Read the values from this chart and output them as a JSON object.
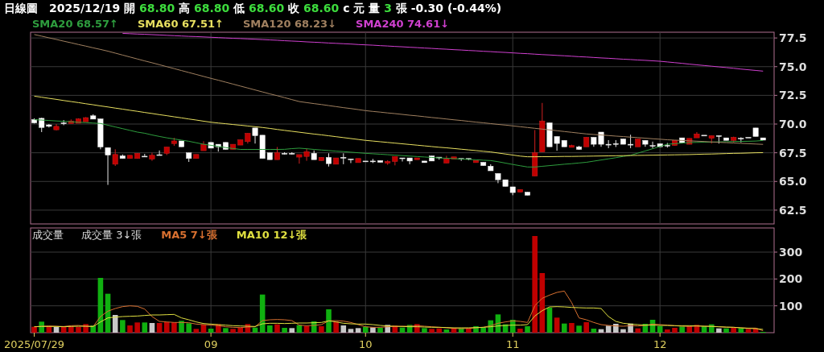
{
  "chart_data": [
    {
      "type": "candlestick",
      "title": "日線圖",
      "subtitle": "2025/12/19 開 68.80 高 68.80 低 68.60 收 68.60 c 元 量 3 張 -0.30 (-0.44%)",
      "categories": [
        "2025/07/29",
        null,
        null,
        null,
        null,
        null,
        null,
        null,
        null,
        null,
        null,
        null,
        null,
        null,
        null,
        null,
        null,
        null,
        null,
        null,
        null,
        null,
        null,
        null,
        "09",
        null,
        null,
        null,
        null,
        null,
        null,
        null,
        null,
        null,
        null,
        null,
        null,
        null,
        null,
        null,
        null,
        null,
        null,
        null,
        null,
        "10",
        null,
        null,
        null,
        null,
        null,
        null,
        null,
        null,
        null,
        null,
        null,
        null,
        null,
        null,
        null,
        null,
        null,
        null,
        null,
        "11",
        null,
        null,
        null,
        null,
        null,
        null,
        null,
        null,
        null,
        null,
        null,
        null,
        null,
        null,
        null,
        null,
        null,
        null,
        null,
        "12",
        null,
        null,
        null,
        null,
        null,
        null,
        null,
        null,
        null,
        null,
        null,
        null,
        null,
        null
      ],
      "ohlc": [
        [
          70.4,
          70.5,
          70.05,
          70.1
        ],
        [
          70.5,
          70.55,
          69.3,
          69.7
        ],
        [
          69.93,
          70.0,
          69.7,
          69.8
        ],
        [
          69.5,
          70.0,
          69.45,
          69.8
        ],
        [
          70.1,
          70.35,
          69.9,
          70.1
        ],
        [
          70.05,
          70.4,
          70.05,
          70.27
        ],
        [
          70.07,
          70.5,
          70.07,
          70.45
        ],
        [
          70.2,
          70.6,
          70.2,
          70.56
        ],
        [
          70.72,
          70.85,
          70.43,
          70.43
        ],
        [
          70.45,
          70.45,
          67.8,
          68.0
        ],
        [
          67.95,
          67.95,
          64.7,
          67.3
        ],
        [
          66.5,
          67.8,
          66.35,
          67.35
        ],
        [
          67.23,
          67.35,
          67.0,
          67.0
        ],
        [
          67.0,
          67.28,
          67.0,
          67.28
        ],
        [
          67.0,
          67.45,
          67.0,
          67.45
        ],
        [
          67.2,
          67.4,
          67.2,
          67.2
        ],
        [
          66.95,
          67.5,
          66.8,
          67.28
        ],
        [
          67.33,
          67.7,
          67.33,
          67.33
        ],
        [
          67.45,
          68.0,
          67.3,
          68.0
        ],
        [
          68.3,
          68.8,
          68.1,
          68.53
        ],
        [
          68.53,
          68.53,
          68.02,
          68.02
        ],
        [
          67.5,
          67.5,
          66.7,
          67.0
        ],
        [
          67.0,
          67.35,
          67.0,
          67.35
        ],
        [
          67.68,
          68.5,
          67.68,
          68.24
        ],
        [
          68.4,
          68.4,
          67.9,
          67.9
        ],
        [
          68.24,
          68.24,
          67.6,
          68.02
        ],
        [
          68.4,
          68.4,
          67.79,
          67.79
        ],
        [
          67.79,
          68.24,
          67.79,
          68.24
        ],
        [
          68.17,
          68.63,
          68.17,
          68.63
        ],
        [
          68.47,
          69.2,
          68.3,
          69.2
        ],
        [
          69.66,
          69.66,
          68.3,
          68.99
        ],
        [
          69.03,
          69.03,
          67.0,
          67.0
        ],
        [
          67.5,
          67.5,
          66.9,
          66.9
        ],
        [
          66.9,
          68.0,
          66.9,
          67.5
        ],
        [
          67.45,
          67.55,
          67.35,
          67.45
        ],
        [
          67.45,
          67.55,
          67.35,
          67.45
        ],
        [
          67.12,
          67.34,
          66.55,
          67.34
        ],
        [
          67.18,
          67.85,
          66.8,
          67.6
        ],
        [
          67.45,
          67.7,
          66.9,
          66.9
        ],
        [
          66.82,
          67.1,
          66.82,
          67.1
        ],
        [
          67.1,
          67.45,
          66.3,
          66.55
        ],
        [
          66.5,
          67.05,
          66.5,
          67.05
        ],
        [
          67.1,
          67.45,
          66.5,
          67.1
        ],
        [
          66.96,
          66.96,
          66.6,
          66.96
        ],
        [
          66.64,
          67.0,
          66.64,
          67.0
        ],
        [
          66.78,
          66.78,
          66.78,
          66.78
        ],
        [
          66.78,
          66.96,
          66.6,
          66.78
        ],
        [
          66.82,
          66.82,
          66.67,
          66.67
        ],
        [
          66.6,
          66.85,
          66.45,
          66.74
        ],
        [
          66.74,
          67.18,
          66.4,
          67.18
        ],
        [
          67.05,
          67.05,
          66.74,
          67.05
        ],
        [
          67.05,
          67.05,
          66.5,
          66.78
        ],
        [
          66.9,
          67.05,
          66.9,
          67.05
        ],
        [
          66.78,
          66.78,
          66.64,
          66.64
        ],
        [
          67.23,
          67.23,
          66.78,
          66.78
        ],
        [
          67.12,
          67.12,
          66.9,
          67.12
        ],
        [
          66.6,
          67.23,
          66.6,
          66.96
        ],
        [
          66.96,
          67.14,
          66.96,
          67.14
        ],
        [
          67.0,
          67.0,
          66.8,
          67.0
        ],
        [
          67.0,
          67.0,
          66.85,
          67.0
        ],
        [
          66.64,
          66.82,
          66.64,
          66.82
        ],
        [
          66.67,
          66.67,
          66.38,
          66.38
        ],
        [
          66.33,
          66.5,
          65.93,
          65.93
        ],
        [
          65.7,
          65.7,
          64.85,
          65.15
        ],
        [
          65.15,
          65.15,
          64.57,
          64.57
        ],
        [
          64.53,
          64.53,
          63.8,
          64.03
        ],
        [
          64.07,
          64.3,
          64.07,
          64.3
        ],
        [
          64.07,
          64.07,
          63.8,
          63.8
        ],
        [
          65.47,
          69.48,
          65.47,
          67.5
        ],
        [
          67.57,
          71.84,
          67.57,
          70.27
        ],
        [
          70.11,
          70.11,
          68.02,
          68.02
        ],
        [
          68.92,
          68.92,
          67.68,
          68.31
        ],
        [
          68.58,
          68.58,
          68.02,
          68.02
        ],
        [
          67.97,
          68.2,
          67.97,
          68.13
        ],
        [
          68.02,
          68.1,
          67.75,
          67.79
        ],
        [
          68.02,
          68.85,
          68.02,
          68.85
        ],
        [
          68.85,
          68.85,
          68.02,
          68.24
        ],
        [
          69.3,
          69.3,
          68.02,
          68.24
        ],
        [
          68.24,
          68.6,
          67.9,
          68.24
        ],
        [
          68.3,
          68.6,
          68.0,
          68.3
        ],
        [
          68.7,
          68.7,
          68.24,
          68.24
        ],
        [
          68.24,
          69.07,
          67.9,
          68.24
        ],
        [
          68.02,
          68.7,
          68.02,
          68.7
        ],
        [
          68.58,
          68.58,
          68.02,
          68.24
        ],
        [
          68.13,
          68.47,
          67.9,
          68.13
        ],
        [
          68.29,
          68.29,
          68.02,
          68.02
        ],
        [
          68.15,
          68.35,
          67.95,
          68.15
        ],
        [
          68.13,
          68.58,
          68.13,
          68.58
        ],
        [
          68.8,
          68.8,
          68.36,
          68.36
        ],
        [
          68.24,
          68.75,
          68.24,
          68.75
        ],
        [
          68.8,
          69.3,
          68.8,
          69.14
        ],
        [
          69.03,
          69.03,
          69.03,
          69.03
        ],
        [
          68.76,
          68.99,
          68.3,
          68.99
        ],
        [
          68.99,
          68.99,
          68.3,
          68.99
        ],
        [
          68.8,
          68.8,
          68.58,
          68.58
        ],
        [
          68.58,
          68.9,
          68.4,
          68.85
        ],
        [
          68.76,
          68.85,
          68.4,
          68.76
        ],
        [
          68.85,
          68.85,
          68.85,
          68.85
        ],
        [
          69.66,
          69.66,
          68.92,
          68.92
        ],
        [
          68.8,
          68.8,
          68.6,
          68.6
        ]
      ],
      "series": [
        {
          "name": "SMA20 68.57↑",
          "type": "line",
          "color": "#2e9e3e",
          "values": [
            70.38,
            70.35,
            70.31,
            70.27,
            70.24,
            70.2,
            70.16,
            70.13,
            70.09,
            70.05,
            69.9,
            69.75,
            69.6,
            69.45,
            69.3,
            69.2,
            69.05,
            68.92,
            68.8,
            68.7,
            68.6,
            68.5,
            68.37,
            68.24,
            68.15,
            68.05,
            67.95,
            67.87,
            67.79,
            67.79,
            67.79,
            67.79,
            67.79,
            67.79,
            67.8,
            67.86,
            67.9,
            67.85,
            67.79,
            67.74,
            67.69,
            67.64,
            67.6,
            67.55,
            67.5,
            67.45,
            67.41,
            67.37,
            67.33,
            67.29,
            67.25,
            67.21,
            67.17,
            67.13,
            67.09,
            67.05,
            67.02,
            66.99,
            66.95,
            66.92,
            66.89,
            66.85,
            66.82,
            66.72,
            66.6,
            66.48,
            66.37,
            66.26,
            66.26,
            66.32,
            66.38,
            66.44,
            66.5,
            66.55,
            66.61,
            66.67,
            66.77,
            66.87,
            66.97,
            67.07,
            67.18,
            67.28,
            67.47,
            67.66,
            67.85,
            68.05,
            68.24,
            68.29,
            68.34,
            68.39,
            68.4,
            68.42,
            68.43,
            68.45,
            68.46,
            68.48,
            68.49,
            68.5,
            68.52,
            68.57
          ]
        },
        {
          "name": "SMA60 67.51↑",
          "type": "line",
          "color": "#e8e060",
          "values": [
            72.43,
            72.34,
            72.24,
            72.15,
            72.05,
            71.96,
            71.87,
            71.77,
            71.68,
            71.58,
            71.49,
            71.39,
            71.3,
            71.2,
            71.11,
            71.01,
            70.92,
            70.82,
            70.73,
            70.63,
            70.54,
            70.44,
            70.35,
            70.25,
            70.16,
            70.09,
            70.03,
            69.96,
            69.9,
            69.83,
            69.77,
            69.7,
            69.62,
            69.53,
            69.45,
            69.37,
            69.29,
            69.21,
            69.13,
            69.06,
            68.98,
            68.9,
            68.82,
            68.74,
            68.66,
            68.58,
            68.52,
            68.46,
            68.4,
            68.34,
            68.28,
            68.22,
            68.16,
            68.1,
            68.04,
            67.98,
            67.93,
            67.87,
            67.81,
            67.75,
            67.69,
            67.63,
            67.57,
            67.48,
            67.39,
            67.3,
            67.21,
            67.15,
            67.15,
            67.16,
            67.16,
            67.17,
            67.18,
            67.18,
            67.19,
            67.2,
            67.21,
            67.22,
            67.23,
            67.24,
            67.25,
            67.26,
            67.27,
            67.28,
            67.29,
            67.3,
            67.31,
            67.32,
            67.33,
            67.34,
            67.36,
            67.38,
            67.39,
            67.41,
            67.43,
            67.45,
            67.46,
            67.48,
            67.5,
            67.51
          ]
        },
        {
          "name": "SMA120 68.23↓",
          "type": "line",
          "color": "#a08060",
          "values": [
            77.8,
            77.66,
            77.51,
            77.37,
            77.22,
            77.08,
            76.93,
            76.79,
            76.64,
            76.5,
            76.35,
            76.18,
            76.01,
            75.84,
            75.67,
            75.5,
            75.34,
            75.17,
            75.0,
            74.83,
            74.66,
            74.49,
            74.32,
            74.15,
            73.98,
            73.82,
            73.65,
            73.48,
            73.31,
            73.14,
            72.97,
            72.8,
            72.63,
            72.47,
            72.3,
            72.13,
            71.96,
            71.87,
            71.78,
            71.7,
            71.61,
            71.52,
            71.43,
            71.35,
            71.26,
            71.17,
            71.1,
            71.04,
            70.97,
            70.91,
            70.84,
            70.77,
            70.71,
            70.64,
            70.57,
            70.51,
            70.44,
            70.37,
            70.31,
            70.24,
            70.17,
            70.11,
            70.04,
            69.97,
            69.91,
            69.84,
            69.77,
            69.7,
            69.63,
            69.56,
            69.49,
            69.42,
            69.35,
            69.28,
            69.21,
            69.14,
            69.09,
            69.05,
            69.0,
            68.95,
            68.91,
            68.86,
            68.82,
            68.77,
            68.72,
            68.68,
            68.63,
            68.6,
            68.57,
            68.54,
            68.51,
            68.48,
            68.44,
            68.41,
            68.38,
            68.35,
            68.32,
            68.29,
            68.26,
            68.23
          ]
        },
        {
          "name": "SMA240 74.61↓",
          "type": "line",
          "color": "#d040d0",
          "values": [
            null,
            null,
            null,
            null,
            null,
            null,
            null,
            null,
            null,
            null,
            null,
            null,
            77.9,
            77.87,
            77.84,
            77.82,
            77.79,
            77.76,
            77.73,
            77.7,
            77.67,
            77.64,
            77.62,
            77.59,
            77.56,
            77.53,
            77.5,
            77.47,
            77.45,
            77.42,
            77.39,
            77.36,
            77.33,
            77.3,
            77.26,
            77.23,
            77.2,
            77.16,
            77.13,
            77.1,
            77.06,
            77.03,
            77.0,
            76.97,
            76.93,
            76.9,
            76.87,
            76.83,
            76.8,
            76.76,
            76.73,
            76.69,
            76.66,
            76.62,
            76.59,
            76.55,
            76.52,
            76.48,
            76.45,
            76.41,
            76.38,
            76.34,
            76.31,
            76.27,
            76.24,
            76.2,
            76.16,
            76.13,
            76.09,
            76.05,
            76.02,
            75.98,
            75.95,
            75.91,
            75.87,
            75.84,
            75.8,
            75.76,
            75.73,
            75.69,
            75.65,
            75.62,
            75.58,
            75.55,
            75.51,
            75.47,
            75.41,
            75.35,
            75.29,
            75.22,
            75.16,
            75.1,
            75.04,
            74.98,
            74.92,
            74.86,
            74.79,
            74.73,
            74.67,
            74.61
          ]
        }
      ],
      "ylim": [
        61.3,
        78.0
      ],
      "yticks": [
        {
          "value": 62.5,
          "label": "62.5"
        },
        {
          "value": 65,
          "label": "65.0"
        },
        {
          "value": 67.5,
          "label": "67.5"
        },
        {
          "value": 70,
          "label": "70.0"
        },
        {
          "value": 72.5,
          "label": "72.5"
        },
        {
          "value": 75,
          "label": "75.0"
        },
        {
          "value": 77.5,
          "label": "77.5"
        }
      ],
      "grid": true,
      "legend": "top left",
      "tick_labels": "y"
    },
    {
      "type": "bar",
      "title": "成交量",
      "categories": [
        "2025/07/29",
        null,
        null,
        null,
        null,
        null,
        null,
        null,
        null,
        null,
        null,
        null,
        null,
        null,
        null,
        null,
        null,
        null,
        null,
        null,
        null,
        null,
        null,
        null,
        "09",
        null,
        null,
        null,
        null,
        null,
        null,
        null,
        null,
        null,
        null,
        null,
        null,
        null,
        null,
        null,
        null,
        null,
        null,
        null,
        null,
        "10",
        null,
        null,
        null,
        null,
        null,
        null,
        null,
        null,
        null,
        null,
        null,
        null,
        null,
        null,
        null,
        null,
        null,
        null,
        null,
        "11",
        null,
        null,
        null,
        null,
        null,
        null,
        null,
        null,
        null,
        null,
        null,
        null,
        null,
        null,
        null,
        null,
        null,
        null,
        null,
        "12",
        null,
        null,
        null,
        null,
        null,
        null,
        null,
        null,
        null,
        null,
        null,
        null,
        null,
        null
      ],
      "series": [
        {
          "name": "成交量 3↓張",
          "values": [
            22,
            41,
            24,
            21,
            22,
            23,
            22,
            32,
            27,
            204,
            145,
            66,
            47,
            27,
            38,
            38,
            36,
            36,
            39,
            38,
            44,
            35,
            14,
            30,
            15,
            31,
            17,
            14,
            18,
            32,
            19,
            142,
            27,
            31,
            18,
            17,
            28,
            24,
            42,
            24,
            87,
            41,
            27,
            14,
            17,
            22,
            20,
            18,
            29,
            26,
            19,
            29,
            32,
            17,
            14,
            16,
            12,
            18,
            16,
            15,
            24,
            19,
            46,
            68,
            31,
            48,
            15,
            24,
            360,
            222,
            93,
            56,
            34,
            36,
            26,
            39,
            15,
            13,
            26,
            33,
            13,
            34,
            16,
            33,
            48,
            24,
            12,
            18,
            23,
            24,
            29,
            24,
            31,
            16,
            16,
            18,
            17,
            14,
            16,
            3
          ],
          "colors": [
            "#c00000",
            "#10b010",
            "#c00000",
            "#c8c8c8",
            "#c00000",
            "#c00000",
            "#c00000",
            "#c00000",
            "#10b010",
            "#10b010",
            "#10b010",
            "#c8c8c8",
            "#10b010",
            "#c00000",
            "#c00000",
            "#10b010",
            "#c8c8c8",
            "#c00000",
            "#c00000",
            "#c00000",
            "#10b010",
            "#10b010",
            "#c00000",
            "#c00000",
            "#10b010",
            "#c00000",
            "#10b010",
            "#c00000",
            "#c00000",
            "#c00000",
            "#10b010",
            "#10b010",
            "#10b010",
            "#c00000",
            "#10b010",
            "#c8c8c8",
            "#10b010",
            "#c00000",
            "#10b010",
            "#c00000",
            "#10b010",
            "#c00000",
            "#c8c8c8",
            "#c8c8c8",
            "#c8c8c8",
            "#10b010",
            "#c8c8c8",
            "#10b010",
            "#c8c8c8",
            "#c00000",
            "#10b010",
            "#10b010",
            "#c00000",
            "#10b010",
            "#c00000",
            "#c00000",
            "#10b010",
            "#c00000",
            "#10b010",
            "#c00000",
            "#10b010",
            "#10b010",
            "#10b010",
            "#10b010",
            "#10b010",
            "#10b010",
            "#c00000",
            "#10b010",
            "#c00000",
            "#c00000",
            "#10b010",
            "#c00000",
            "#10b010",
            "#c00000",
            "#10b010",
            "#c00000",
            "#10b010",
            "#c8c8c8",
            "#c8c8c8",
            "#c8c8c8",
            "#c8c8c8",
            "#c8c8c8",
            "#c00000",
            "#10b010",
            "#10b010",
            "#10b010",
            "#c00000",
            "#c00000",
            "#10b010",
            "#c00000",
            "#c00000",
            "#10b010",
            "#10b010",
            "#c8c8c8",
            "#10b010",
            "#c00000",
            "#10b010",
            "#c00000",
            "#c00000",
            "#10b010"
          ]
        },
        {
          "name": "MA5 7↓張",
          "type": "line",
          "color": "#d87030",
          "values": [
            22,
            24,
            25,
            24,
            23,
            26,
            27,
            24,
            23,
            60,
            80,
            90,
            97,
            100,
            98,
            88,
            60,
            42,
            40,
            38,
            38,
            37,
            32,
            30,
            28,
            26,
            22,
            20,
            19,
            21,
            22,
            45,
            48,
            49,
            48,
            45,
            28,
            26,
            27,
            30,
            44,
            45,
            43,
            38,
            30,
            22,
            20,
            20,
            22,
            23,
            24,
            24,
            26,
            24,
            22,
            20,
            18,
            16,
            15,
            16,
            18,
            20,
            26,
            35,
            40,
            44,
            42,
            38,
            100,
            128,
            140,
            150,
            155,
            112,
            55,
            48,
            38,
            30,
            27,
            25,
            24,
            26,
            25,
            27,
            32,
            30,
            28,
            26,
            24,
            23,
            25,
            24,
            24,
            22,
            20,
            20,
            18,
            17,
            17,
            7
          ]
        },
        {
          "name": "MA10 12↓張",
          "type": "line",
          "color": "#e0e040",
          "values": [
            22,
            23,
            23,
            23,
            22,
            23,
            24,
            24,
            23,
            40,
            55,
            58,
            60,
            61,
            62,
            64,
            66,
            66,
            67,
            68,
            55,
            48,
            40,
            34,
            32,
            30,
            28,
            26,
            25,
            24,
            23,
            33,
            35,
            35,
            34,
            35,
            36,
            36,
            37,
            38,
            44,
            40,
            35,
            33,
            32,
            32,
            30,
            27,
            25,
            24,
            23,
            22,
            22,
            21,
            20,
            20,
            19,
            18,
            18,
            18,
            19,
            20,
            22,
            25,
            27,
            28,
            28,
            30,
            62,
            82,
            96,
            97,
            96,
            94,
            93,
            92,
            92,
            90,
            60,
            42,
            35,
            32,
            30,
            28,
            28,
            27,
            27,
            26,
            26,
            26,
            25,
            24,
            23,
            22,
            21,
            20,
            18,
            16,
            15,
            12
          ]
        }
      ],
      "ylim": [
        0,
        390
      ],
      "yticks": [
        100,
        200,
        300
      ],
      "grid": true,
      "legend": "top left"
    }
  ]
}
